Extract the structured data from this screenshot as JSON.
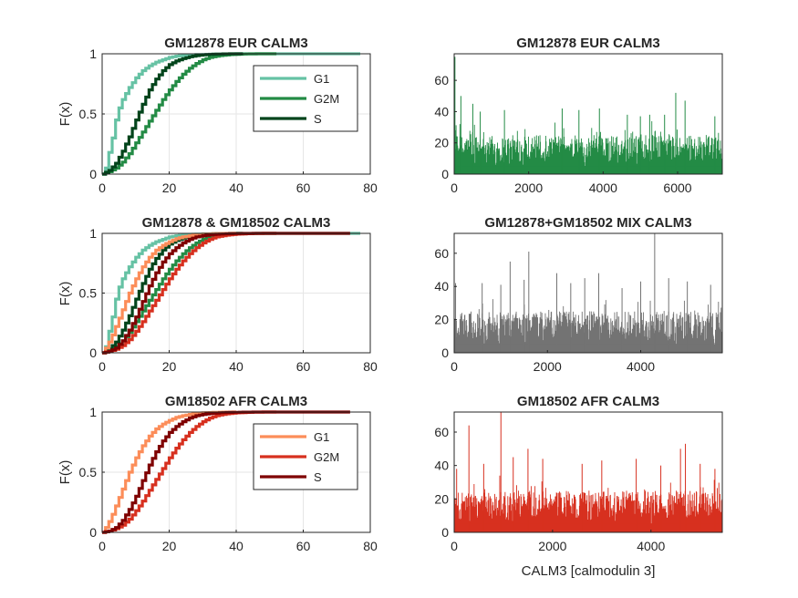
{
  "chart_data": [
    {
      "type": "line",
      "kind": "ecdf",
      "title": "GM12878 EUR CALM3",
      "ylabel": "F(x)",
      "xlim": [
        0,
        80
      ],
      "ylim": [
        0,
        1
      ],
      "xticks": [
        0,
        20,
        40,
        60,
        80
      ],
      "yticks": [
        0,
        0.5,
        1
      ],
      "grid": true,
      "legend": "top-right",
      "series": [
        {
          "name": "G1",
          "color": "#66c2a4",
          "x": [
            0,
            1,
            2,
            3,
            4,
            5,
            6,
            8,
            10,
            12,
            14,
            16,
            18,
            20,
            22,
            25,
            30,
            35,
            40,
            45,
            50,
            60,
            77
          ],
          "y": [
            0,
            0.05,
            0.18,
            0.3,
            0.45,
            0.55,
            0.62,
            0.72,
            0.8,
            0.86,
            0.9,
            0.93,
            0.95,
            0.97,
            0.98,
            0.99,
            0.995,
            0.998,
            1,
            1,
            1,
            1,
            1
          ]
        },
        {
          "name": "G2M",
          "color": "#238b45",
          "x": [
            0,
            2,
            4,
            6,
            8,
            10,
            12,
            14,
            16,
            18,
            20,
            22,
            24,
            26,
            28,
            30,
            32,
            35,
            38,
            42,
            46,
            52
          ],
          "y": [
            0,
            0.02,
            0.05,
            0.1,
            0.17,
            0.26,
            0.35,
            0.44,
            0.53,
            0.62,
            0.7,
            0.77,
            0.83,
            0.88,
            0.92,
            0.95,
            0.97,
            0.985,
            0.993,
            0.998,
            1,
            1
          ]
        },
        {
          "name": "S",
          "color": "#00441b",
          "x": [
            0,
            2,
            4,
            6,
            8,
            10,
            12,
            14,
            16,
            18,
            20,
            22,
            24,
            26,
            28,
            30,
            33,
            36,
            39,
            42
          ],
          "y": [
            0,
            0.03,
            0.09,
            0.19,
            0.31,
            0.45,
            0.58,
            0.7,
            0.79,
            0.86,
            0.91,
            0.94,
            0.96,
            0.975,
            0.985,
            0.992,
            0.996,
            0.999,
            1,
            1
          ]
        }
      ]
    },
    {
      "type": "line",
      "kind": "ecdf",
      "title": "GM12878 & GM18502 CALM3",
      "ylabel": "F(x)",
      "xlim": [
        0,
        80
      ],
      "ylim": [
        0,
        1
      ],
      "xticks": [
        0,
        20,
        40,
        60,
        80
      ],
      "yticks": [
        0,
        0.5,
        1
      ],
      "grid": true,
      "series": [
        {
          "color": "#66c2a4",
          "x": [
            0,
            1,
            2,
            3,
            4,
            5,
            6,
            8,
            10,
            12,
            14,
            16,
            18,
            20,
            22,
            25,
            30,
            35,
            40,
            50,
            60,
            70,
            77
          ],
          "y": [
            0,
            0.05,
            0.18,
            0.3,
            0.45,
            0.55,
            0.62,
            0.72,
            0.8,
            0.86,
            0.9,
            0.93,
            0.95,
            0.97,
            0.98,
            0.99,
            0.995,
            0.998,
            1,
            1,
            1,
            1,
            1
          ]
        },
        {
          "color": "#238b45",
          "x": [
            0,
            2,
            4,
            6,
            8,
            10,
            12,
            14,
            16,
            18,
            20,
            22,
            24,
            26,
            28,
            30,
            32,
            35,
            38,
            42,
            46,
            52
          ],
          "y": [
            0,
            0.02,
            0.05,
            0.1,
            0.17,
            0.26,
            0.35,
            0.44,
            0.53,
            0.62,
            0.7,
            0.77,
            0.83,
            0.88,
            0.92,
            0.95,
            0.97,
            0.985,
            0.993,
            0.998,
            1,
            1
          ]
        },
        {
          "color": "#00441b",
          "x": [
            0,
            2,
            4,
            6,
            8,
            10,
            12,
            14,
            16,
            18,
            20,
            22,
            24,
            26,
            28,
            30,
            33,
            36,
            39,
            42
          ],
          "y": [
            0,
            0.03,
            0.09,
            0.19,
            0.31,
            0.45,
            0.58,
            0.7,
            0.79,
            0.86,
            0.91,
            0.94,
            0.96,
            0.975,
            0.985,
            0.992,
            0.996,
            0.999,
            1,
            1
          ]
        },
        {
          "color": "#fc8d59",
          "x": [
            0,
            1,
            2,
            3,
            4,
            6,
            8,
            10,
            12,
            14,
            16,
            18,
            20,
            22,
            24,
            26,
            28,
            30,
            33,
            36,
            40
          ],
          "y": [
            0,
            0.04,
            0.09,
            0.15,
            0.22,
            0.36,
            0.5,
            0.62,
            0.72,
            0.8,
            0.86,
            0.9,
            0.93,
            0.955,
            0.97,
            0.98,
            0.988,
            0.993,
            0.997,
            0.999,
            1
          ]
        },
        {
          "color": "#d7301f",
          "x": [
            0,
            2,
            4,
            6,
            8,
            10,
            12,
            14,
            16,
            18,
            20,
            22,
            24,
            26,
            28,
            30,
            32,
            34,
            37,
            40,
            44,
            48,
            52
          ],
          "y": [
            0,
            0.01,
            0.03,
            0.06,
            0.11,
            0.18,
            0.26,
            0.35,
            0.44,
            0.53,
            0.62,
            0.7,
            0.77,
            0.83,
            0.88,
            0.92,
            0.95,
            0.97,
            0.985,
            0.993,
            0.998,
            1,
            1
          ]
        },
        {
          "color": "#7f0000",
          "x": [
            0,
            2,
            4,
            6,
            8,
            10,
            12,
            14,
            16,
            18,
            20,
            22,
            24,
            26,
            28,
            30,
            32,
            35,
            38,
            42,
            46,
            50,
            74
          ],
          "y": [
            0,
            0.01,
            0.04,
            0.1,
            0.19,
            0.3,
            0.43,
            0.56,
            0.67,
            0.76,
            0.83,
            0.88,
            0.92,
            0.95,
            0.97,
            0.98,
            0.988,
            0.994,
            0.997,
            0.999,
            1,
            1,
            1
          ]
        }
      ]
    },
    {
      "type": "line",
      "kind": "ecdf",
      "title": "GM18502 AFR CALM3",
      "ylabel": "F(x)",
      "xlim": [
        0,
        80
      ],
      "ylim": [
        0,
        1
      ],
      "xticks": [
        0,
        20,
        40,
        60,
        80
      ],
      "yticks": [
        0,
        0.5,
        1
      ],
      "grid": true,
      "legend": "top-right",
      "series": [
        {
          "name": "G1",
          "color": "#fc8d59",
          "x": [
            0,
            1,
            2,
            3,
            4,
            6,
            8,
            10,
            12,
            14,
            16,
            18,
            20,
            22,
            24,
            26,
            28,
            30,
            33,
            36,
            40
          ],
          "y": [
            0,
            0.04,
            0.09,
            0.15,
            0.22,
            0.36,
            0.5,
            0.62,
            0.72,
            0.8,
            0.86,
            0.9,
            0.93,
            0.955,
            0.97,
            0.98,
            0.988,
            0.993,
            0.997,
            0.999,
            1
          ]
        },
        {
          "name": "G2M",
          "color": "#d7301f",
          "x": [
            0,
            2,
            4,
            6,
            8,
            10,
            12,
            14,
            16,
            18,
            20,
            22,
            24,
            26,
            28,
            30,
            32,
            34,
            37,
            40,
            44,
            48,
            52
          ],
          "y": [
            0,
            0.01,
            0.03,
            0.06,
            0.11,
            0.18,
            0.26,
            0.35,
            0.44,
            0.53,
            0.62,
            0.7,
            0.77,
            0.83,
            0.88,
            0.92,
            0.95,
            0.97,
            0.985,
            0.993,
            0.998,
            1,
            1
          ]
        },
        {
          "name": "S",
          "color": "#7f0000",
          "x": [
            0,
            2,
            4,
            6,
            8,
            10,
            12,
            14,
            16,
            18,
            20,
            22,
            24,
            26,
            28,
            30,
            32,
            35,
            38,
            42,
            46,
            50,
            74
          ],
          "y": [
            0,
            0.01,
            0.04,
            0.1,
            0.19,
            0.3,
            0.43,
            0.56,
            0.67,
            0.76,
            0.83,
            0.88,
            0.92,
            0.95,
            0.97,
            0.98,
            0.988,
            0.994,
            0.997,
            0.999,
            1,
            1,
            1
          ]
        }
      ]
    },
    {
      "type": "bar",
      "kind": "per-cell counts",
      "title": "GM12878 EUR CALM3",
      "color": "#238b45",
      "xlim": [
        0,
        7200
      ],
      "ylim": [
        0,
        77
      ],
      "xticks": [
        0,
        2000,
        4000,
        6000
      ],
      "yticks": [
        0,
        20,
        40,
        60
      ],
      "n": 7200,
      "typical_range": [
        5,
        25
      ],
      "peaks": [
        [
          20,
          75
        ],
        [
          180,
          50
        ],
        [
          500,
          45
        ],
        [
          700,
          40
        ],
        [
          1350,
          41
        ],
        [
          2900,
          42
        ],
        [
          3350,
          41
        ],
        [
          3900,
          42
        ],
        [
          4650,
          38
        ],
        [
          5000,
          37
        ],
        [
          5250,
          38
        ],
        [
          5650,
          38
        ],
        [
          5950,
          52
        ],
        [
          6200,
          47
        ],
        [
          7000,
          37
        ]
      ]
    },
    {
      "type": "bar",
      "kind": "per-cell counts",
      "title": "GM12878+GM18502 MIX CALM3",
      "color": "#737373",
      "xlim": [
        0,
        5750
      ],
      "ylim": [
        0,
        72
      ],
      "xticks": [
        0,
        2000,
        4000
      ],
      "yticks": [
        0,
        20,
        40,
        60
      ],
      "n": 5750,
      "typical_range": [
        5,
        25
      ],
      "peaks": [
        [
          30,
          42
        ],
        [
          600,
          42
        ],
        [
          1000,
          41
        ],
        [
          1200,
          55
        ],
        [
          1500,
          44
        ],
        [
          1600,
          61
        ],
        [
          2200,
          48
        ],
        [
          2500,
          42
        ],
        [
          2800,
          45
        ],
        [
          3100,
          48
        ],
        [
          3600,
          39
        ],
        [
          4000,
          43
        ],
        [
          4300,
          72
        ],
        [
          4600,
          45
        ],
        [
          5000,
          43
        ],
        [
          5500,
          41
        ]
      ]
    },
    {
      "type": "bar",
      "kind": "per-cell counts",
      "title": "GM18502 AFR CALM3",
      "xlabel": "CALM3 [calmodulin 3]",
      "color": "#d7301f",
      "xlim": [
        0,
        5450
      ],
      "ylim": [
        0,
        72
      ],
      "xticks": [
        0,
        2000,
        4000
      ],
      "yticks": [
        0,
        20,
        40,
        60
      ],
      "n": 5450,
      "typical_range": [
        5,
        25
      ],
      "peaks": [
        [
          50,
          38
        ],
        [
          300,
          64
        ],
        [
          600,
          41
        ],
        [
          950,
          72
        ],
        [
          1200,
          45
        ],
        [
          1500,
          50
        ],
        [
          1800,
          44
        ],
        [
          2600,
          41
        ],
        [
          3000,
          43
        ],
        [
          3700,
          44
        ],
        [
          4200,
          40
        ],
        [
          4600,
          50
        ],
        [
          4700,
          53
        ],
        [
          5000,
          41
        ],
        [
          5300,
          38
        ]
      ]
    }
  ]
}
